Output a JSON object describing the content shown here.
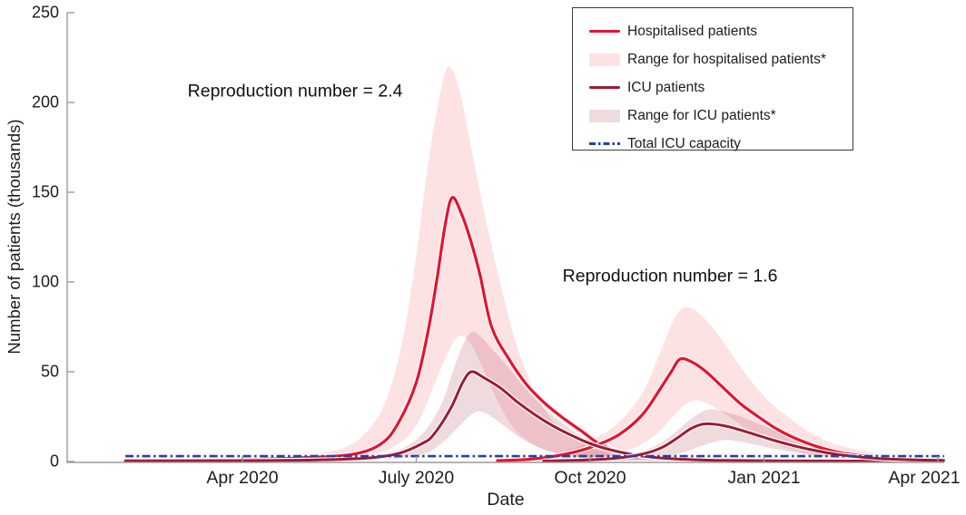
{
  "chart_data": {
    "type": "line",
    "title": "",
    "xlabel": "Date",
    "ylabel": "Number of patients (thousands)",
    "x_unit": "months_since_Jan_2020",
    "xlim_months": [
      0.98,
      15.1
    ],
    "ylim": [
      0,
      250
    ],
    "grid": false,
    "y_ticks": [
      0,
      50,
      100,
      150,
      200,
      250
    ],
    "x_ticks": [
      {
        "label": "Apr 2020",
        "t": 3
      },
      {
        "label": "July 2020",
        "t": 6
      },
      {
        "label": "Oct 2020",
        "t": 9
      },
      {
        "label": "Jan 2021",
        "t": 12
      },
      {
        "label": "Apr 2021",
        "t": 15
      }
    ],
    "annotations": [
      {
        "text": "Reproduction number = 2.4",
        "t": 3.91,
        "v": 206
      },
      {
        "text": "Reproduction number = 1.6",
        "t": 10.38,
        "v": 103
      }
    ],
    "bands": [
      {
        "name": "range-hospitalised-wave1",
        "legend": "Range for hospitalised patients*",
        "color_key": "hosp_band",
        "upper": [
          [
            0.98,
            1.2
          ],
          [
            3,
            1.8
          ],
          [
            4,
            3.5
          ],
          [
            4.7,
            7
          ],
          [
            5.1,
            15
          ],
          [
            5.45,
            32
          ],
          [
            5.75,
            65
          ],
          [
            6.0,
            115
          ],
          [
            6.2,
            165
          ],
          [
            6.4,
            203
          ],
          [
            6.55,
            220
          ],
          [
            6.72,
            210
          ],
          [
            6.9,
            183
          ],
          [
            7.1,
            150
          ],
          [
            7.4,
            106
          ],
          [
            7.7,
            68
          ],
          [
            8.0,
            42
          ],
          [
            8.3,
            25
          ],
          [
            8.6,
            15
          ],
          [
            9.0,
            8
          ],
          [
            9.4,
            4
          ],
          [
            9.9,
            2
          ],
          [
            10.6,
            1
          ],
          [
            11.5,
            0.6
          ],
          [
            13,
            0.4
          ],
          [
            15.1,
            0.35
          ]
        ],
        "lower": [
          [
            0.98,
            0.4
          ],
          [
            3,
            0.6
          ],
          [
            4.2,
            1.2
          ],
          [
            5.1,
            3
          ],
          [
            5.6,
            8
          ],
          [
            6.0,
            20
          ],
          [
            6.3,
            42
          ],
          [
            6.55,
            61
          ],
          [
            6.75,
            70
          ],
          [
            6.95,
            65
          ],
          [
            7.15,
            52
          ],
          [
            7.4,
            34
          ],
          [
            7.65,
            20
          ],
          [
            7.95,
            11
          ],
          [
            8.3,
            5.5
          ],
          [
            8.7,
            2.8
          ],
          [
            9.2,
            1.3
          ],
          [
            9.9,
            0.6
          ],
          [
            11,
            0.3
          ],
          [
            13,
            0.2
          ],
          [
            15.1,
            0.15
          ]
        ]
      },
      {
        "name": "range-hospitalised-wave2",
        "legend": "Range for hospitalised patients*",
        "color_key": "hosp_band",
        "upper": [
          [
            7.6,
            1.5
          ],
          [
            8.2,
            3.5
          ],
          [
            8.7,
            7
          ],
          [
            9.1,
            13
          ],
          [
            9.5,
            22
          ],
          [
            9.9,
            38
          ],
          [
            10.2,
            60
          ],
          [
            10.4,
            76
          ],
          [
            10.55,
            84
          ],
          [
            10.7,
            86
          ],
          [
            10.9,
            82
          ],
          [
            11.2,
            71
          ],
          [
            11.5,
            57
          ],
          [
            11.8,
            44
          ],
          [
            12.1,
            33
          ],
          [
            12.45,
            24
          ],
          [
            12.8,
            16
          ],
          [
            13.2,
            10
          ],
          [
            13.7,
            6
          ],
          [
            14.2,
            3.2
          ],
          [
            14.7,
            1.8
          ],
          [
            15.1,
            1.2
          ]
        ],
        "lower": [
          [
            7.7,
            0.3
          ],
          [
            8.5,
            1.2
          ],
          [
            9.2,
            3.2
          ],
          [
            9.7,
            7
          ],
          [
            10.1,
            14
          ],
          [
            10.4,
            24
          ],
          [
            10.65,
            32
          ],
          [
            10.85,
            34
          ],
          [
            11.1,
            31
          ],
          [
            11.4,
            25
          ],
          [
            11.7,
            18
          ],
          [
            12.0,
            13
          ],
          [
            12.35,
            8
          ],
          [
            12.7,
            4.8
          ],
          [
            13.1,
            2.7
          ],
          [
            13.6,
            1.4
          ],
          [
            14.2,
            0.7
          ],
          [
            15.1,
            0.4
          ]
        ]
      },
      {
        "name": "range-icu-wave1",
        "legend": "Range for ICU patients*",
        "color_key": "icu_band",
        "upper": [
          [
            0.98,
            0.6
          ],
          [
            3,
            0.8
          ],
          [
            4.5,
            1.5
          ],
          [
            5.3,
            3.5
          ],
          [
            5.8,
            8
          ],
          [
            6.15,
            17
          ],
          [
            6.45,
            33
          ],
          [
            6.65,
            52
          ],
          [
            6.82,
            66
          ],
          [
            6.95,
            72
          ],
          [
            7.1,
            70
          ],
          [
            7.3,
            63
          ],
          [
            7.6,
            52
          ],
          [
            7.9,
            40
          ],
          [
            8.2,
            30
          ],
          [
            8.5,
            22
          ],
          [
            8.8,
            15
          ],
          [
            9.15,
            9.5
          ],
          [
            9.5,
            5.5
          ],
          [
            9.95,
            3
          ],
          [
            10.5,
            1.5
          ],
          [
            11.2,
            0.8
          ],
          [
            12.2,
            0.45
          ],
          [
            13.5,
            0.3
          ],
          [
            15.1,
            0.25
          ]
        ],
        "lower": [
          [
            0.98,
            0.2
          ],
          [
            3,
            0.3
          ],
          [
            5,
            0.8
          ],
          [
            5.8,
            2
          ],
          [
            6.2,
            5
          ],
          [
            6.5,
            12
          ],
          [
            6.75,
            20
          ],
          [
            6.95,
            26
          ],
          [
            7.1,
            28
          ],
          [
            7.3,
            25
          ],
          [
            7.55,
            19
          ],
          [
            7.8,
            13
          ],
          [
            8.1,
            8
          ],
          [
            8.45,
            4.5
          ],
          [
            8.8,
            2.4
          ],
          [
            9.2,
            1.2
          ],
          [
            9.7,
            0.6
          ],
          [
            10.5,
            0.3
          ],
          [
            12,
            0.2
          ],
          [
            15.1,
            0.15
          ]
        ]
      },
      {
        "name": "range-icu-wave2",
        "legend": "Range for ICU patients*",
        "color_key": "icu_band",
        "upper": [
          [
            8.4,
            0.8
          ],
          [
            9.2,
            2
          ],
          [
            9.8,
            4.8
          ],
          [
            10.2,
            10
          ],
          [
            10.5,
            17
          ],
          [
            10.75,
            24
          ],
          [
            10.95,
            28
          ],
          [
            11.1,
            29
          ],
          [
            11.35,
            27.5
          ],
          [
            11.65,
            24.5
          ],
          [
            11.95,
            20.5
          ],
          [
            12.25,
            16.5
          ],
          [
            12.6,
            12.5
          ],
          [
            12.95,
            9
          ],
          [
            13.35,
            6
          ],
          [
            13.8,
            3.6
          ],
          [
            14.25,
            2
          ],
          [
            14.75,
            1.2
          ],
          [
            15.1,
            0.9
          ]
        ],
        "lower": [
          [
            8.7,
            0.2
          ],
          [
            9.6,
            0.8
          ],
          [
            10.2,
            2.2
          ],
          [
            10.6,
            5
          ],
          [
            10.9,
            8.5
          ],
          [
            11.15,
            11
          ],
          [
            11.35,
            12
          ],
          [
            11.6,
            11
          ],
          [
            11.9,
            9
          ],
          [
            12.2,
            7
          ],
          [
            12.55,
            5
          ],
          [
            12.9,
            3.3
          ],
          [
            13.3,
            2
          ],
          [
            13.8,
            1
          ],
          [
            14.4,
            0.5
          ],
          [
            15.1,
            0.3
          ]
        ]
      }
    ],
    "series": [
      {
        "name": "Hospitalised patients (R=2.4)",
        "legend": "Hospitalised patients",
        "color_key": "red",
        "width": 3.2,
        "points": [
          [
            0.98,
            0.8
          ],
          [
            2,
            0.8
          ],
          [
            3,
            1
          ],
          [
            4,
            2
          ],
          [
            4.9,
            4
          ],
          [
            5.4,
            10
          ],
          [
            5.7,
            22
          ],
          [
            6.0,
            44
          ],
          [
            6.2,
            72
          ],
          [
            6.35,
            100
          ],
          [
            6.5,
            132
          ],
          [
            6.62,
            147
          ],
          [
            6.78,
            138
          ],
          [
            6.95,
            122
          ],
          [
            7.1,
            104
          ],
          [
            7.3,
            75
          ],
          [
            7.6,
            57
          ],
          [
            7.9,
            43
          ],
          [
            8.2,
            33
          ],
          [
            8.5,
            25
          ],
          [
            8.85,
            17
          ],
          [
            9.15,
            10
          ],
          [
            9.5,
            5.5
          ],
          [
            10,
            2.6
          ],
          [
            10.5,
            1.4
          ],
          [
            11,
            0.9
          ],
          [
            12,
            0.5
          ],
          [
            13,
            0.35
          ],
          [
            14,
            0.25
          ],
          [
            15.1,
            0.2
          ]
        ]
      },
      {
        "name": "Hospitalised patients (R=1.6)",
        "legend": "Hospitalised patients",
        "color_key": "red",
        "width": 3.2,
        "points": [
          [
            7.4,
            0.5
          ],
          [
            7.9,
            1.1
          ],
          [
            8.3,
            2.5
          ],
          [
            8.7,
            5
          ],
          [
            9.1,
            9
          ],
          [
            9.5,
            15
          ],
          [
            9.9,
            26
          ],
          [
            10.2,
            40
          ],
          [
            10.4,
            50
          ],
          [
            10.55,
            57
          ],
          [
            10.75,
            55.5
          ],
          [
            11.0,
            50
          ],
          [
            11.3,
            41
          ],
          [
            11.6,
            32
          ],
          [
            11.9,
            25
          ],
          [
            12.2,
            18.5
          ],
          [
            12.5,
            13.5
          ],
          [
            12.9,
            8.5
          ],
          [
            13.3,
            5
          ],
          [
            13.8,
            2.8
          ],
          [
            14.3,
            1.6
          ],
          [
            15.1,
            1
          ]
        ]
      },
      {
        "name": "ICU patients (R=2.4)",
        "legend": "ICU patients",
        "color_key": "maroon",
        "width": 3,
        "points": [
          [
            0.98,
            0.4
          ],
          [
            3,
            0.5
          ],
          [
            4.3,
            0.9
          ],
          [
            5.2,
            2
          ],
          [
            5.7,
            4.5
          ],
          [
            6.1,
            10
          ],
          [
            6.3,
            15
          ],
          [
            6.6,
            30
          ],
          [
            6.8,
            44
          ],
          [
            6.95,
            50
          ],
          [
            7.15,
            47
          ],
          [
            7.45,
            41
          ],
          [
            7.75,
            33
          ],
          [
            8.05,
            26
          ],
          [
            8.35,
            20
          ],
          [
            8.65,
            15
          ],
          [
            9.0,
            10
          ],
          [
            9.35,
            6.5
          ],
          [
            9.75,
            3.8
          ],
          [
            10.2,
            2
          ],
          [
            10.7,
            1.1
          ],
          [
            11.3,
            0.6
          ],
          [
            12.2,
            0.35
          ],
          [
            13.5,
            0.25
          ],
          [
            15.1,
            0.2
          ]
        ]
      },
      {
        "name": "ICU patients (R=1.6)",
        "legend": "ICU patients",
        "color_key": "maroon",
        "width": 3,
        "points": [
          [
            8.2,
            0.3
          ],
          [
            8.9,
            0.8
          ],
          [
            9.5,
            2
          ],
          [
            9.95,
            4.5
          ],
          [
            10.25,
            8
          ],
          [
            10.5,
            13
          ],
          [
            10.72,
            18
          ],
          [
            10.9,
            20.5
          ],
          [
            11.05,
            21
          ],
          [
            11.3,
            20
          ],
          [
            11.6,
            17.5
          ],
          [
            11.9,
            14.5
          ],
          [
            12.2,
            11.5
          ],
          [
            12.55,
            8.5
          ],
          [
            12.9,
            6
          ],
          [
            13.3,
            3.8
          ],
          [
            13.75,
            2.2
          ],
          [
            14.2,
            1.3
          ],
          [
            14.7,
            0.8
          ],
          [
            15.1,
            0.6
          ]
        ]
      }
    ],
    "capacity_line": {
      "label": "Total ICU capacity",
      "value_thousands": 3,
      "color_key": "blue"
    },
    "legend": [
      {
        "label": "Hospitalised patients",
        "swatch": "line",
        "color_key": "red"
      },
      {
        "label": "Range for hospitalised patients*",
        "swatch": "fill",
        "color_key": "hosp_band"
      },
      {
        "label": "ICU patients",
        "swatch": "line",
        "color_key": "maroon"
      },
      {
        "label": "Range for ICU patients*",
        "swatch": "fill",
        "color_key": "icu_band"
      },
      {
        "label": "Total ICU capacity",
        "swatch": "dashdot",
        "color_key": "blue"
      }
    ],
    "legend_position": "top-right",
    "colors": {
      "red": "#e8112d",
      "maroon": "#9e1b32",
      "hosp_band": "rgba(237,28,46,0.13)",
      "icu_band": "rgba(158,27,50,0.16)",
      "blue": "#2540a6",
      "axis": "#9b9b9b",
      "text": "#1d1d1d"
    }
  }
}
